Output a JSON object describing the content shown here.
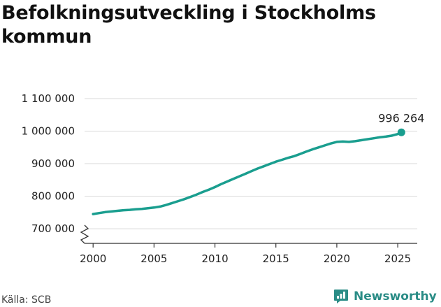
{
  "chart_data": {
    "type": "line",
    "title": "Befolkningsutveckling i Stockholms kommun",
    "xlabel": "",
    "ylabel": "",
    "x_ticks": [
      2000,
      2005,
      2010,
      2015,
      2020,
      2025
    ],
    "x_tick_labels": [
      "2000",
      "2005",
      "2010",
      "2015",
      "2020",
      "2025"
    ],
    "y_ticks": [
      700000,
      800000,
      900000,
      1000000,
      1100000
    ],
    "y_tick_labels": [
      "700 000",
      "800 000",
      "900 000",
      "1 000 000",
      "1 100 000"
    ],
    "xlim": [
      1999.3,
      2026.6
    ],
    "ylim": [
      655000,
      1100000
    ],
    "y_axis_break": true,
    "grid": true,
    "legend": "none",
    "series": [
      {
        "color": "#1a9e8f",
        "x": [
          2000,
          2000.5,
          2001,
          2001.5,
          2002,
          2002.5,
          2003,
          2003.5,
          2004,
          2004.5,
          2005,
          2005.5,
          2006,
          2006.5,
          2007,
          2007.5,
          2008,
          2008.5,
          2009,
          2009.5,
          2010,
          2010.5,
          2011,
          2011.5,
          2012,
          2012.5,
          2013,
          2013.5,
          2014,
          2014.5,
          2015,
          2015.5,
          2016,
          2016.5,
          2017,
          2017.5,
          2018,
          2018.5,
          2019,
          2019.5,
          2020,
          2020.5,
          2021,
          2021.5,
          2022,
          2022.5,
          2023,
          2023.5,
          2024,
          2024.5,
          2025,
          2025.3
        ],
        "y": [
          745000,
          748000,
          751000,
          753000,
          755000,
          757000,
          758000,
          760000,
          761000,
          763000,
          765000,
          768000,
          773000,
          779000,
          785000,
          791000,
          798000,
          805000,
          813000,
          820000,
          828000,
          837000,
          845000,
          853000,
          861000,
          869000,
          877000,
          885000,
          892000,
          899000,
          906000,
          912000,
          918000,
          923000,
          930000,
          937000,
          944000,
          950000,
          956000,
          962000,
          967000,
          968000,
          967000,
          969000,
          972000,
          975000,
          978000,
          981000,
          983000,
          986000,
          991000,
          996264
        ]
      }
    ],
    "end_point": {
      "x": 2025.3,
      "y": 996264,
      "label": "996 264"
    }
  },
  "source": "Källa: SCB",
  "brand": {
    "name": "Newsworthy",
    "color": "#2a8c86"
  },
  "colors": {
    "line": "#1a9e8f",
    "grid": "#d9d9d9",
    "axis": "#333333",
    "text": "#222222"
  }
}
